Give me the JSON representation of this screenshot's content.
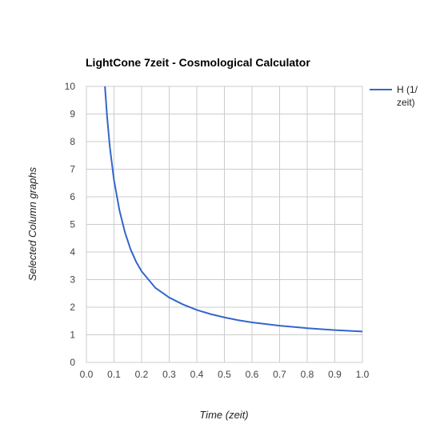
{
  "chart_data": {
    "type": "line",
    "title": "LightCone 7zeit - Cosmological Calculator",
    "xlabel": "Time (zeit)",
    "ylabel": "Selected Column graphs",
    "xlim": [
      0.0,
      1.0
    ],
    "ylim": [
      0,
      10
    ],
    "x_ticks": [
      "0.0",
      "0.1",
      "0.2",
      "0.3",
      "0.4",
      "0.5",
      "0.6",
      "0.7",
      "0.8",
      "0.9",
      "1.0"
    ],
    "y_ticks": [
      "0",
      "1",
      "2",
      "3",
      "4",
      "5",
      "6",
      "7",
      "8",
      "9",
      "10"
    ],
    "grid": true,
    "legend": {
      "position": "right",
      "entries": [
        "H (1/",
        "zeit)"
      ]
    },
    "series": [
      {
        "name": "H (1/zeit)",
        "color": "#3366cc",
        "x": [
          0.065,
          0.075,
          0.085,
          0.1,
          0.12,
          0.14,
          0.16,
          0.18,
          0.2,
          0.25,
          0.3,
          0.35,
          0.4,
          0.45,
          0.5,
          0.55,
          0.6,
          0.7,
          0.8,
          0.9,
          1.0
        ],
        "y": [
          10.3,
          8.9,
          7.8,
          6.6,
          5.5,
          4.7,
          4.1,
          3.65,
          3.3,
          2.7,
          2.35,
          2.1,
          1.9,
          1.75,
          1.63,
          1.53,
          1.45,
          1.33,
          1.24,
          1.17,
          1.12
        ]
      }
    ]
  }
}
